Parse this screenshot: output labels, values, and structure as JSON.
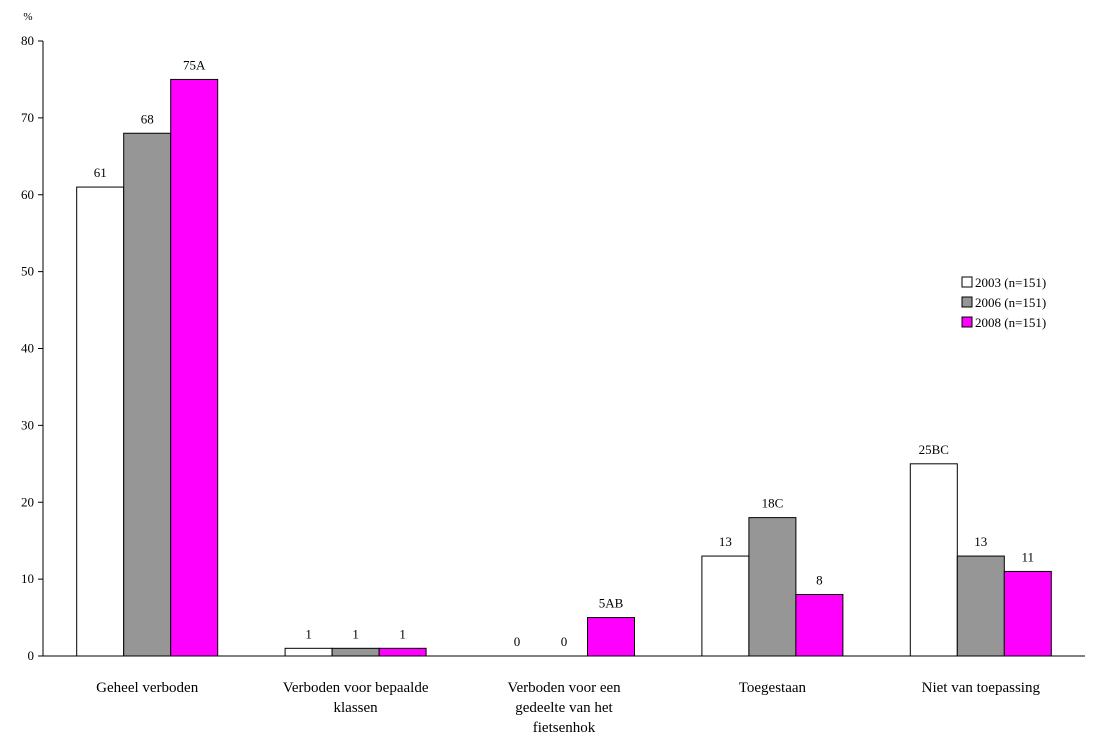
{
  "chart_data": {
    "type": "bar",
    "title": "",
    "xlabel": "",
    "ylabel": "%",
    "ylim": [
      0,
      80
    ],
    "yticks": [
      "0",
      "10",
      "20",
      "30",
      "40",
      "50",
      "60",
      "70",
      "80"
    ],
    "grid": false,
    "legend_position": "right",
    "categories": [
      [
        "Geheel verboden"
      ],
      [
        "Verboden voor bepaalde",
        "klassen"
      ],
      [
        "Verboden voor een",
        "gedeelte van het",
        "fietsenhok"
      ],
      [
        "Toegestaan"
      ],
      [
        "Niet van toepassing"
      ]
    ],
    "series": [
      {
        "name": "2003 (n=151)",
        "color": "#ffffff",
        "values": [
          61,
          1,
          0,
          13,
          25
        ],
        "labels": [
          "61",
          "1",
          "0",
          "13",
          "25BC"
        ]
      },
      {
        "name": "2006 (n=151)",
        "color": "#969696",
        "values": [
          68,
          1,
          0,
          18,
          13
        ],
        "labels": [
          "68",
          "1",
          "0",
          "18C",
          "13"
        ]
      },
      {
        "name": "2008 (n=151)",
        "color": "#ff00ff",
        "values": [
          75,
          1,
          5,
          8,
          11
        ],
        "labels": [
          "75A",
          "1",
          "5AB",
          "8",
          "11"
        ]
      }
    ]
  }
}
